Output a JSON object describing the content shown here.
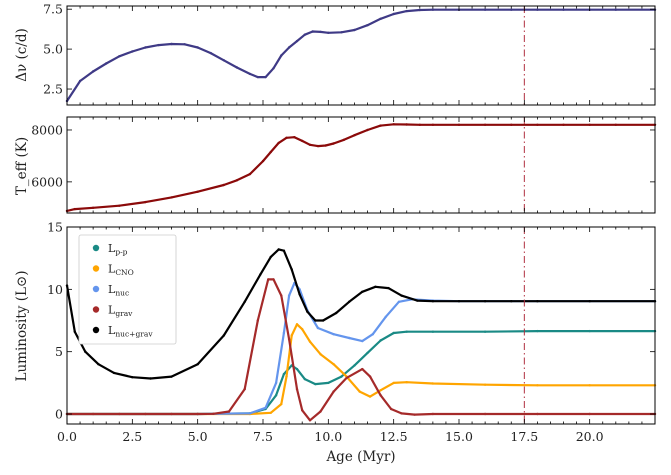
{
  "chart_data": [
    {
      "id": "dnu",
      "type": "line",
      "xlabel": "",
      "ylabel": "Δν (c/d)",
      "xlim": [
        0,
        22.5
      ],
      "ylim": [
        1.5,
        7.7
      ],
      "yticks": [
        2.5,
        5.0,
        7.5
      ],
      "ytick_labels": [
        "2.5",
        "5.0",
        "7.5"
      ],
      "series": [
        {
          "color": "#3f3a86",
          "x": [
            0,
            0.5,
            1,
            1.5,
            2,
            2.5,
            3,
            3.5,
            4,
            4.5,
            5,
            5.5,
            6,
            6.5,
            7,
            7.3,
            7.6,
            7.9,
            8.2,
            8.5,
            8.8,
            9.1,
            9.4,
            9.7,
            10,
            10.5,
            11,
            11.5,
            12,
            12.5,
            13,
            13.5,
            14,
            15,
            16,
            17,
            18,
            19,
            20,
            21,
            22.5
          ],
          "y": [
            1.75,
            3.0,
            3.6,
            4.1,
            4.55,
            4.85,
            5.1,
            5.25,
            5.32,
            5.3,
            5.1,
            4.75,
            4.3,
            3.85,
            3.45,
            3.25,
            3.25,
            3.8,
            4.6,
            5.1,
            5.5,
            5.9,
            6.1,
            6.08,
            6.02,
            6.05,
            6.2,
            6.5,
            6.9,
            7.2,
            7.38,
            7.45,
            7.47,
            7.47,
            7.47,
            7.47,
            7.47,
            7.47,
            7.47,
            7.47,
            7.47
          ]
        }
      ],
      "vline_x": 17.5
    },
    {
      "id": "teff",
      "type": "line",
      "xlabel": "",
      "ylabel": "T_eff (K)",
      "xlim": [
        0,
        22.5
      ],
      "ylim": [
        4800,
        8500
      ],
      "yticks": [
        6000,
        8000
      ],
      "ytick_labels": [
        "6000",
        "8000"
      ],
      "series": [
        {
          "color": "#8b0a0a",
          "x": [
            0,
            0.3,
            1,
            2,
            3,
            4,
            5,
            6,
            6.5,
            7,
            7.5,
            7.8,
            8.1,
            8.4,
            8.7,
            9,
            9.3,
            9.6,
            9.9,
            10.2,
            10.6,
            11,
            11.5,
            12,
            12.5,
            13,
            13.5,
            14,
            15,
            16,
            17,
            18,
            19,
            20,
            21,
            22.5
          ],
          "y": [
            4880,
            4950,
            5000,
            5080,
            5220,
            5400,
            5620,
            5880,
            6060,
            6300,
            6800,
            7150,
            7500,
            7700,
            7720,
            7580,
            7430,
            7380,
            7400,
            7480,
            7620,
            7800,
            8000,
            8170,
            8220,
            8210,
            8200,
            8200,
            8200,
            8200,
            8200,
            8200,
            8200,
            8200,
            8200,
            8200
          ]
        }
      ],
      "vline_x": 17.5
    },
    {
      "id": "lum",
      "type": "line",
      "xlabel": "Age (Myr)",
      "ylabel": "Luminosity (L⊙)",
      "xlim": [
        0,
        22.5
      ],
      "ylim": [
        -0.8,
        15
      ],
      "yticks": [
        0,
        5,
        10,
        15
      ],
      "ytick_labels": [
        "0",
        "5",
        "10",
        "15"
      ],
      "xticks": [
        0,
        2.5,
        5,
        7.5,
        10,
        12.5,
        15,
        17.5,
        20
      ],
      "xtick_labels": [
        "0.0",
        "2.5",
        "5.0",
        "7.5",
        "10.0",
        "12.5",
        "15.0",
        "17.5",
        "20.0"
      ],
      "vline_x": 17.5,
      "legend_position": "upper-left",
      "series": [
        {
          "name": "L_p-p",
          "label_main": "L",
          "label_sub": "p-p",
          "color": "#1a8a85",
          "x": [
            0,
            5,
            7,
            7.6,
            8,
            8.3,
            8.6,
            8.8,
            9.1,
            9.5,
            10,
            10.5,
            11,
            11.5,
            12,
            12.5,
            13,
            14,
            16,
            18,
            20,
            22.5
          ],
          "y": [
            0,
            0,
            0.05,
            0.4,
            1.5,
            3.2,
            3.9,
            3.6,
            2.8,
            2.4,
            2.5,
            3.0,
            3.9,
            4.9,
            5.9,
            6.5,
            6.6,
            6.6,
            6.6,
            6.65,
            6.65,
            6.65
          ]
        },
        {
          "name": "L_CNO",
          "label_main": "L",
          "label_sub": "CNO",
          "color": "#ffa500",
          "x": [
            0,
            5,
            7,
            7.8,
            8.2,
            8.4,
            8.6,
            8.8,
            9.0,
            9.3,
            9.7,
            10.2,
            10.7,
            11.2,
            11.6,
            12,
            12.5,
            13,
            14,
            16,
            18,
            20,
            22.5
          ],
          "y": [
            0,
            0,
            0,
            0.1,
            0.8,
            3.0,
            6.3,
            7.2,
            6.8,
            5.8,
            4.8,
            4.0,
            3.0,
            1.8,
            1.4,
            1.9,
            2.5,
            2.55,
            2.45,
            2.35,
            2.3,
            2.3,
            2.3
          ]
        },
        {
          "name": "L_nuc",
          "label_main": "L",
          "label_sub": "nuc",
          "color": "#6495ed",
          "x": [
            0,
            5,
            7,
            7.6,
            8,
            8.3,
            8.5,
            8.7,
            8.9,
            9.2,
            9.6,
            10.2,
            10.8,
            11.3,
            11.7,
            12.2,
            12.7,
            13.2,
            14,
            15,
            16,
            18,
            20,
            22.5
          ],
          "y": [
            0,
            0,
            0.05,
            0.5,
            2.5,
            6.5,
            9.5,
            10.5,
            10.0,
            8.3,
            6.9,
            6.4,
            6.1,
            5.85,
            6.4,
            7.8,
            9.0,
            9.2,
            9.1,
            9.05,
            9.05,
            9.05,
            9.05,
            9.05
          ]
        },
        {
          "name": "L_grav",
          "label_main": "L",
          "label_sub": "grav",
          "color": "#a52a2a",
          "x": [
            0,
            1,
            2,
            3,
            4,
            5,
            5.6,
            6.2,
            6.8,
            7.3,
            7.7,
            7.9,
            8.2,
            8.5,
            8.8,
            9.0,
            9.3,
            9.7,
            10.2,
            10.7,
            11.3,
            11.6,
            12.0,
            12.4,
            12.8,
            13.3,
            14,
            16,
            18,
            20,
            22.5
          ],
          "y": [
            0,
            0,
            0,
            0,
            0,
            0,
            0.02,
            0.2,
            2.0,
            7.5,
            10.8,
            10.8,
            9.5,
            6.0,
            2.0,
            0.3,
            -0.5,
            0.2,
            1.8,
            2.9,
            3.6,
            3.0,
            1.5,
            0.4,
            0.05,
            -0.05,
            0,
            0,
            0,
            0,
            0
          ]
        },
        {
          "name": "L_nuc+grav",
          "label_main": "L",
          "label_sub": "nuc+grav",
          "color": "#000000",
          "x": [
            0,
            0.3,
            0.7,
            1.2,
            1.8,
            2.5,
            3.2,
            4,
            5,
            6,
            6.8,
            7.4,
            7.8,
            8.1,
            8.3,
            8.6,
            8.9,
            9.2,
            9.5,
            9.8,
            10.3,
            10.8,
            11.3,
            11.8,
            12.3,
            12.8,
            13.4,
            14,
            15,
            16,
            17,
            18,
            20,
            22.5
          ],
          "y": [
            10.3,
            6.6,
            5.0,
            4.0,
            3.3,
            2.95,
            2.85,
            3.0,
            4.0,
            6.3,
            9.0,
            11.2,
            12.6,
            13.2,
            13.1,
            11.6,
            9.6,
            8.2,
            7.5,
            7.5,
            8.1,
            9.0,
            9.8,
            10.2,
            10.1,
            9.5,
            9.1,
            9.05,
            9.05,
            9.05,
            9.05,
            9.05,
            9.05,
            9.05
          ]
        }
      ]
    }
  ]
}
